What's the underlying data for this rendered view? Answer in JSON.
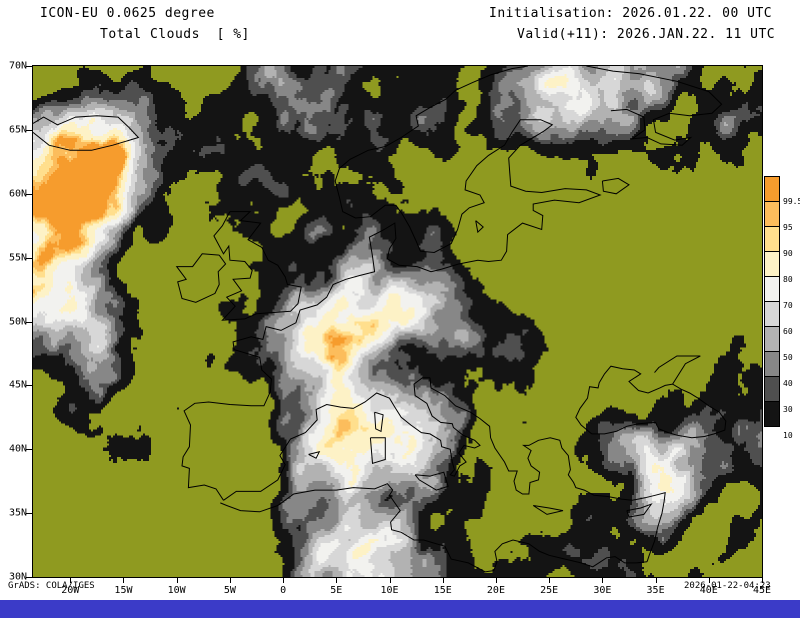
{
  "header": {
    "model": "ICON-EU 0.0625 degree",
    "variable": "Total Clouds  [ %]",
    "init": "Initialisation: 2026.01.22. 00 UTC",
    "valid": "Valid(+11): 2026.JAN.22. 11 UTC"
  },
  "axes": {
    "x_ticks": [
      "20W",
      "15W",
      "10W",
      "5W",
      "0",
      "5E",
      "10E",
      "15E",
      "20E",
      "25E",
      "30E",
      "35E",
      "40E",
      "45E"
    ],
    "y_ticks": [
      "70N",
      "65N",
      "60N",
      "55N",
      "50N",
      "45N",
      "40N",
      "35N",
      "30N"
    ],
    "lon_range": [
      -23.5,
      45
    ],
    "lat_range": [
      30,
      70
    ]
  },
  "colorbar": {
    "labels": [
      "99.5",
      "95",
      "90",
      "80",
      "70",
      "60",
      "50",
      "40",
      "30",
      "10"
    ],
    "palette_low_to_high": [
      "#141414",
      "#4f4f4f",
      "#878787",
      "#b2b2b2",
      "#d7d7d7",
      "#f2f2ef",
      "#fdf2c6",
      "#ffdf8d",
      "#fcbd5c",
      "#f69c2d"
    ],
    "clear_color": "#8f9a20"
  },
  "footer": {
    "credit": "GrADS: COLA/IGES",
    "timestamp": "2026-01-22-04:23"
  },
  "colors": {
    "text": "#000000",
    "footer_bar": "#3b3bc8",
    "map_border": "#000000",
    "clear_sky": "#8f9a20"
  },
  "chart_data": {
    "type": "heatmap",
    "title": "Total Clouds [%]",
    "model": "ICON-EU 0.0625 degree",
    "initialisation": "2026.01.22. 00 UTC",
    "valid": "2026.JAN.22. 11 UTC",
    "forecast_hour": 11,
    "units": "%",
    "lon_range_deg": [
      -23.5,
      45
    ],
    "lat_range_deg": [
      30,
      70
    ],
    "shading_levels_percent": [
      10,
      30,
      40,
      50,
      60,
      70,
      80,
      90,
      95,
      99.5
    ],
    "palette_low_to_high": [
      "#141414",
      "#4f4f4f",
      "#878787",
      "#b2b2b2",
      "#d7d7d7",
      "#f2f2ef",
      "#fdf2c6",
      "#ffdf8d",
      "#fcbd5c",
      "#f69c2d"
    ],
    "below_minimum_color": "#8f9a20",
    "colorbar_position": "right",
    "projection": "latlon-europe",
    "grid": false
  }
}
